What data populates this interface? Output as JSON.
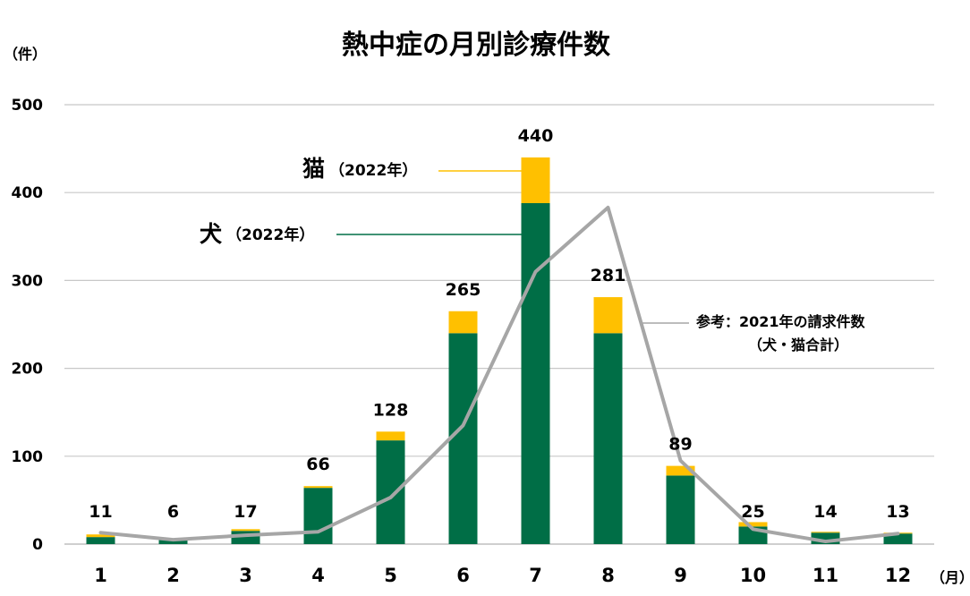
{
  "chart_data": {
    "type": "bar",
    "title": "熱中症の月別診療件数",
    "ylabel": "（件）",
    "xunit": "（月）",
    "ylim": [
      0,
      500
    ],
    "yticks": [
      0,
      100,
      200,
      300,
      400,
      500
    ],
    "grid": true,
    "stacked": true,
    "categories": [
      "1",
      "2",
      "3",
      "4",
      "5",
      "6",
      "7",
      "8",
      "9",
      "10",
      "11",
      "12"
    ],
    "series": [
      {
        "name": "犬",
        "name_suffix": "（2022年）",
        "type": "bar",
        "color": "#006e46",
        "values": [
          8,
          5,
          15,
          64,
          118,
          240,
          388,
          240,
          78,
          20,
          13,
          12
        ]
      },
      {
        "name": "猫",
        "name_suffix": "（2022年）",
        "type": "bar",
        "color": "#ffc000",
        "values": [
          3,
          1,
          2,
          2,
          10,
          25,
          52,
          41,
          11,
          5,
          1,
          1
        ]
      },
      {
        "name": "参考：2021年の請求件数",
        "name_line2": "（犬・猫合計）",
        "type": "line",
        "color": "#a6a6a6",
        "values": [
          13,
          5,
          10,
          14,
          53,
          135,
          310,
          383,
          95,
          17,
          3,
          12
        ]
      }
    ],
    "totals": [
      "11",
      "6",
      "17",
      "66",
      "128",
      "265",
      "440",
      "281",
      "89",
      "25",
      "14",
      "13"
    ]
  }
}
